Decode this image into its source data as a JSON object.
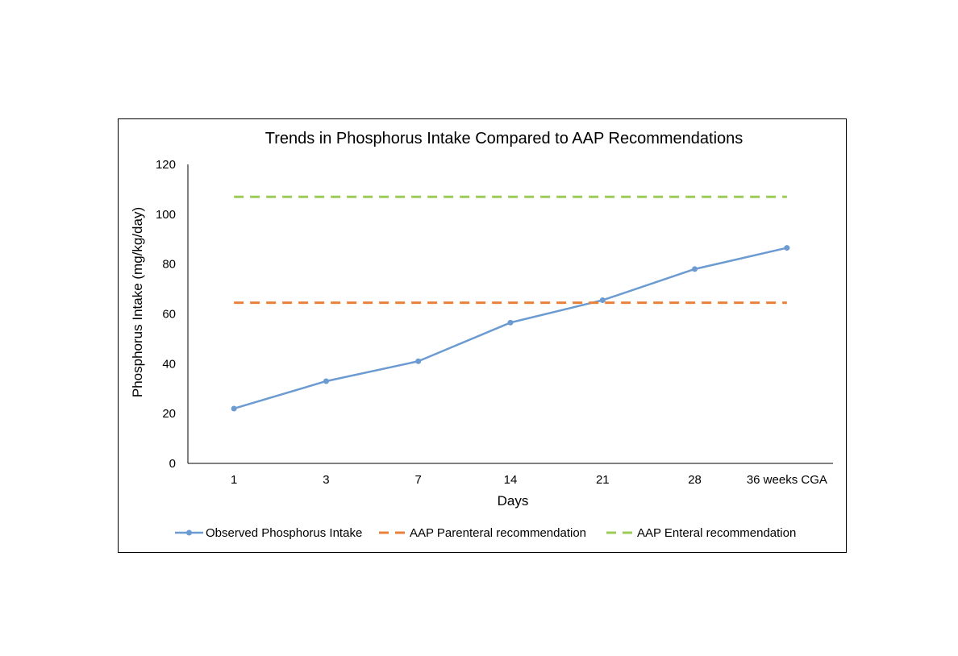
{
  "chart_data": {
    "type": "line",
    "title": "Trends in Phosphorus Intake Compared to AAP Recommendations",
    "xlabel": "Days",
    "ylabel": "Phosphorus Intake (mg/kg/day)",
    "categories": [
      "1",
      "3",
      "7",
      "14",
      "21",
      "28",
      "36 weeks CGA"
    ],
    "ylim": [
      0,
      120
    ],
    "yticks": [
      "0",
      "20",
      "40",
      "60",
      "80",
      "100",
      "120"
    ],
    "grid": false,
    "legend_position": "bottom",
    "series": [
      {
        "name": "Observed Phosphorus Intake",
        "values": [
          22,
          33,
          41,
          56.5,
          65.5,
          78,
          86.5
        ],
        "color": "#6b9bd1",
        "style": "solid-markers"
      },
      {
        "name": "AAP Parenteral recommendation",
        "values": [
          64.5,
          64.5,
          64.5,
          64.5,
          64.5,
          64.5,
          64.5
        ],
        "color": "#e8813c",
        "style": "dashed"
      },
      {
        "name": "AAP Enteral recommendation",
        "values": [
          107,
          107,
          107,
          107,
          107,
          107,
          107
        ],
        "color": "#9dcb5a",
        "style": "dashed"
      }
    ]
  }
}
